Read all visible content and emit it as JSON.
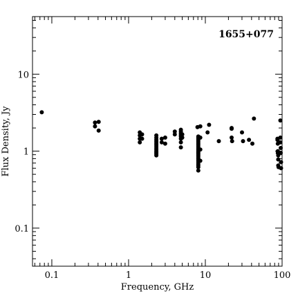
{
  "chart_data": {
    "type": "scatter",
    "title": "1655+077",
    "xlabel": "Frequency, GHz",
    "ylabel": "Flux Density, Jy",
    "xscale": "log",
    "yscale": "log",
    "xlim": [
      0.056,
      100
    ],
    "ylim": [
      0.032,
      56
    ],
    "xticks": [
      0.1,
      1,
      10,
      100
    ],
    "xtick_labels": [
      "0.1",
      "1",
      "10",
      "100"
    ],
    "yticks": [
      0.1,
      1,
      10
    ],
    "ytick_labels": [
      "0.1",
      "1",
      "10"
    ],
    "grid": false,
    "series": [
      {
        "marker_color": "#000000",
        "points": [
          [
            0.074,
            3.2
          ],
          [
            0.365,
            2.35
          ],
          [
            0.365,
            2.1
          ],
          [
            0.408,
            2.4
          ],
          [
            0.408,
            1.85
          ],
          [
            1.4,
            1.75
          ],
          [
            1.4,
            1.6
          ],
          [
            1.4,
            1.45
          ],
          [
            1.4,
            1.3
          ],
          [
            1.5,
            1.65
          ],
          [
            1.5,
            1.45
          ],
          [
            2.3,
            1.6
          ],
          [
            2.3,
            1.5
          ],
          [
            2.3,
            1.42
          ],
          [
            2.3,
            1.35
          ],
          [
            2.3,
            1.28
          ],
          [
            2.3,
            1.22
          ],
          [
            2.3,
            1.16
          ],
          [
            2.3,
            1.1
          ],
          [
            2.3,
            1.05
          ],
          [
            2.3,
            1.0
          ],
          [
            2.3,
            0.96
          ],
          [
            2.3,
            0.92
          ],
          [
            2.3,
            0.88
          ],
          [
            2.7,
            1.45
          ],
          [
            2.7,
            1.3
          ],
          [
            3.0,
            1.5
          ],
          [
            3.0,
            1.25
          ],
          [
            4.0,
            1.8
          ],
          [
            4.0,
            1.65
          ],
          [
            4.8,
            1.9
          ],
          [
            4.8,
            1.8
          ],
          [
            4.8,
            1.7
          ],
          [
            4.8,
            1.62
          ],
          [
            4.8,
            1.55
          ],
          [
            4.8,
            1.45
          ],
          [
            4.8,
            1.3
          ],
          [
            4.8,
            1.12
          ],
          [
            5.0,
            1.65
          ],
          [
            5.0,
            1.5
          ],
          [
            7.9,
            2.05
          ],
          [
            8.1,
            1.55
          ],
          [
            8.1,
            1.48
          ],
          [
            8.1,
            1.41
          ],
          [
            8.1,
            1.35
          ],
          [
            8.1,
            1.28
          ],
          [
            8.1,
            1.22
          ],
          [
            8.1,
            1.16
          ],
          [
            8.1,
            1.1
          ],
          [
            8.1,
            1.05
          ],
          [
            8.1,
            1.0
          ],
          [
            8.1,
            0.96
          ],
          [
            8.1,
            0.92
          ],
          [
            8.1,
            0.88
          ],
          [
            8.1,
            0.84
          ],
          [
            8.1,
            0.8
          ],
          [
            8.1,
            0.76
          ],
          [
            8.1,
            0.72
          ],
          [
            8.1,
            0.68
          ],
          [
            8.1,
            0.65
          ],
          [
            8.1,
            0.62
          ],
          [
            8.1,
            0.56
          ],
          [
            8.6,
            2.1
          ],
          [
            8.6,
            1.5
          ],
          [
            8.6,
            1.05
          ],
          [
            8.6,
            0.75
          ],
          [
            10.7,
            1.75
          ],
          [
            11.2,
            2.2
          ],
          [
            15.0,
            1.35
          ],
          [
            22.0,
            2.0
          ],
          [
            22.0,
            1.95
          ],
          [
            22.0,
            1.5
          ],
          [
            22.3,
            1.35
          ],
          [
            30.0,
            1.75
          ],
          [
            31.0,
            1.35
          ],
          [
            37.0,
            1.4
          ],
          [
            41.0,
            1.25
          ],
          [
            43.0,
            2.65
          ],
          [
            87,
            1.45
          ],
          [
            87,
            1.4
          ],
          [
            88,
            1.25
          ],
          [
            88,
            1.0
          ],
          [
            88,
            0.95
          ],
          [
            89,
            0.88
          ],
          [
            89,
            0.78
          ],
          [
            89,
            0.65
          ],
          [
            90,
            0.62
          ],
          [
            95,
            2.5
          ],
          [
            95,
            1.5
          ],
          [
            95,
            1.3
          ],
          [
            96,
            1.1
          ],
          [
            96,
            0.95
          ],
          [
            97,
            0.72
          ],
          [
            97,
            0.6
          ]
        ]
      }
    ]
  }
}
